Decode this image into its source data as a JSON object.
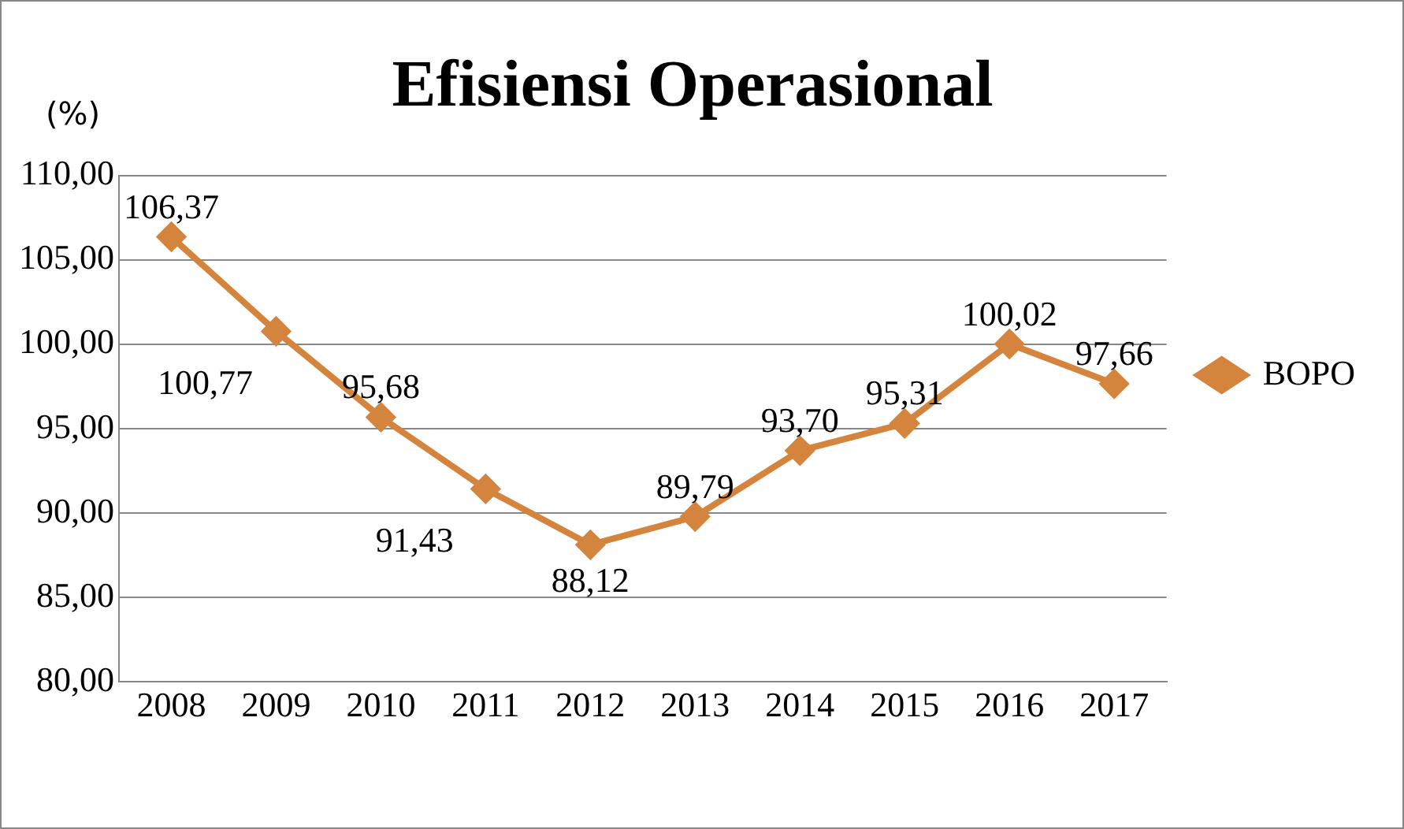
{
  "chart_data": {
    "type": "line",
    "title": "Efisiensi Operasional",
    "ylabel": "(%)",
    "categories": [
      "2008",
      "2009",
      "2010",
      "2011",
      "2012",
      "2013",
      "2014",
      "2015",
      "2016",
      "2017"
    ],
    "series": [
      {
        "name": "BOPO",
        "color": "#d4843c",
        "values": [
          106.37,
          100.77,
          95.68,
          91.43,
          88.12,
          89.79,
          93.7,
          95.31,
          100.02,
          97.66
        ],
        "value_labels": [
          "106,37",
          "100,77",
          "95,68",
          "91,43",
          "88,12",
          "89,79",
          "93,70",
          "95,31",
          "100,02",
          "97,66"
        ]
      }
    ],
    "ylim": [
      80,
      110
    ],
    "yticks": [
      {
        "value": 80,
        "label": "80,00"
      },
      {
        "value": 85,
        "label": "85,00"
      },
      {
        "value": 90,
        "label": "90,00"
      },
      {
        "value": 95,
        "label": "95,00"
      },
      {
        "value": 100,
        "label": "100,00"
      },
      {
        "value": 105,
        "label": "105,00"
      },
      {
        "value": 110,
        "label": "110,00"
      }
    ],
    "grid": "y",
    "legend": "right",
    "marker": "diamond",
    "line_style": "solid"
  }
}
